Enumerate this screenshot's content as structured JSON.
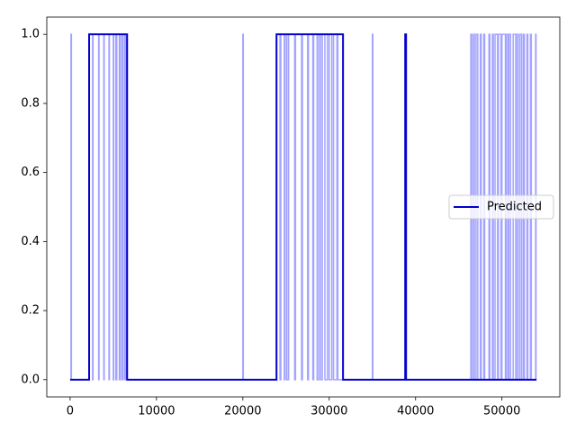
{
  "chart_data": {
    "type": "line",
    "xlim": [
      -2700,
      56700
    ],
    "ylim": [
      -0.05,
      1.05
    ],
    "xticks": [
      0,
      10000,
      20000,
      30000,
      40000,
      50000
    ],
    "yticks": [
      {
        "value": 0,
        "label": "0.0"
      },
      0.2,
      0.4,
      0.6,
      0.8,
      {
        "value": 1,
        "label": "1.0"
      }
    ],
    "legend": "center right",
    "series": [
      {
        "color": "#9999ff",
        "x": [
          0,
          100,
          100,
          150,
          150,
          2200,
          2200,
          2600,
          2600,
          2650,
          2650,
          3300,
          3300,
          3350,
          3350,
          3900,
          3900,
          3950,
          3950,
          4500,
          4500,
          4550,
          4550,
          5000,
          5000,
          5050,
          5050,
          5300,
          5300,
          5400,
          5400,
          5700,
          5700,
          5800,
          5800,
          6000,
          6000,
          6100,
          6100,
          6300,
          6300,
          6400,
          6400,
          6500,
          6500,
          20000,
          20000,
          20050,
          20050,
          23900,
          23900,
          24300,
          24300,
          24400,
          24400,
          24800,
          24800,
          24900,
          24900,
          25100,
          25100,
          25300,
          25300,
          26000,
          26000,
          26100,
          26100,
          26800,
          26800,
          26900,
          26900,
          27500,
          27500,
          27600,
          27600,
          28100,
          28100,
          28200,
          28200,
          28600,
          28600,
          28800,
          28800,
          29000,
          29000,
          29200,
          29200,
          29500,
          29500,
          29800,
          29800,
          30000,
          30000,
          30300,
          30300,
          30500,
          30500,
          30900,
          30900,
          31000,
          31000,
          35000,
          35000,
          35050,
          35050,
          46400,
          46400,
          46500,
          46500,
          46700,
          46700,
          46800,
          46800,
          47000,
          47000,
          47200,
          47200,
          47500,
          47500,
          47600,
          47600,
          47900,
          47900,
          48000,
          48000,
          48500,
          48500,
          48600,
          48600,
          48900,
          48900,
          49000,
          49000,
          49200,
          49200,
          49500,
          49500,
          49600,
          49600,
          49900,
          49900,
          50000,
          50000,
          50400,
          50400,
          50500,
          50500,
          50700,
          50700,
          50800,
          50800,
          51000,
          51000,
          51300,
          51300,
          51600,
          51600,
          51700,
          51700,
          51900,
          51900,
          52100,
          52100,
          52300,
          52300,
          52500,
          52500,
          52600,
          52600,
          52900,
          52900,
          53000,
          53000,
          53300,
          53300,
          53400,
          53400,
          53900,
          53900,
          53950,
          53950,
          54000
        ],
        "values": [
          0,
          0,
          1,
          1,
          0,
          0,
          1,
          1,
          0,
          0,
          1,
          1,
          0,
          0,
          1,
          1,
          0,
          0,
          1,
          1,
          0,
          0,
          1,
          1,
          0,
          0,
          1,
          1,
          0,
          0,
          1,
          1,
          0,
          0,
          1,
          1,
          0,
          0,
          1,
          1,
          0,
          0,
          1,
          1,
          0,
          0,
          1,
          1,
          0,
          0,
          1,
          1,
          0,
          0,
          1,
          1,
          0,
          0,
          1,
          1,
          0,
          0,
          1,
          1,
          0,
          0,
          1,
          1,
          0,
          0,
          1,
          1,
          0,
          0,
          1,
          1,
          0,
          0,
          1,
          1,
          0,
          0,
          1,
          1,
          0,
          0,
          1,
          1,
          0,
          0,
          1,
          1,
          0,
          0,
          1,
          1,
          0,
          0,
          1,
          1,
          0,
          0,
          1,
          1,
          0,
          0,
          1,
          1,
          0,
          0,
          1,
          1,
          0,
          0,
          1,
          1,
          0,
          0,
          1,
          1,
          0,
          0,
          1,
          1,
          0,
          0,
          1,
          1,
          0,
          0,
          1,
          1,
          0,
          0,
          1,
          1,
          0,
          0,
          1,
          1,
          0,
          0,
          1,
          1,
          0,
          0,
          1,
          1,
          0,
          0,
          1,
          1,
          0,
          0,
          1,
          1,
          0,
          0,
          1,
          1,
          0,
          0,
          1,
          1,
          0,
          0,
          1,
          1,
          0,
          0,
          1,
          1,
          0,
          0,
          1,
          1,
          0,
          0,
          1,
          1,
          0,
          0
        ]
      },
      {
        "name": "Predicted",
        "color": "#0000cc",
        "x": [
          0,
          2200,
          2200,
          6600,
          6600,
          23900,
          23900,
          31600,
          31600,
          38800,
          38800,
          38900,
          38900,
          54000
        ],
        "values": [
          0,
          0,
          1,
          1,
          0,
          0,
          1,
          1,
          0,
          0,
          1,
          1,
          0,
          0
        ]
      }
    ]
  }
}
